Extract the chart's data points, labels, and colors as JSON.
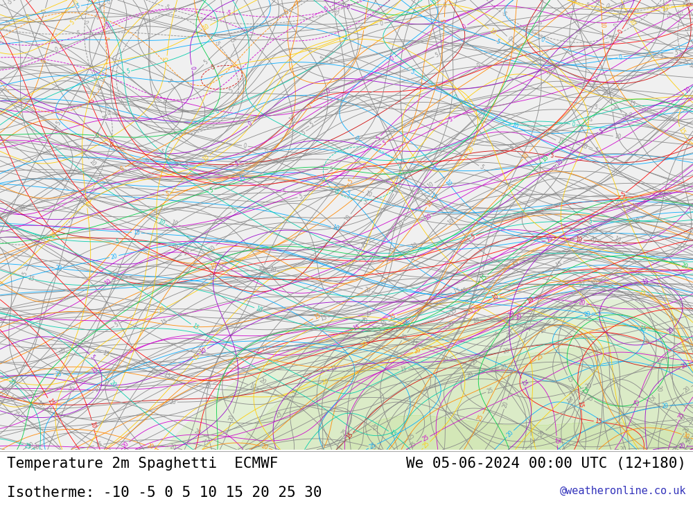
{
  "title_left": "Temperature 2m Spaghetti  ECMWF",
  "title_right": "We 05-06-2024 00:00 UTC (12+180)",
  "isotherme_label": "Isotherme: -10 -5 0 5 10 15 20 25 30",
  "watermark": "@weatheronline.co.uk",
  "bottom_bar_color": "#ffffff",
  "text_color": "#000000",
  "watermark_color": "#3333bb",
  "title_fontsize": 15,
  "iso_fontsize": 15,
  "watermark_fontsize": 11,
  "fig_width": 10.0,
  "fig_height": 7.33,
  "map_bg_color": "#f0f0f0",
  "warm_fill_color": "#d8f0c0",
  "member_colors": [
    "#888888",
    "#888888",
    "#888888",
    "#888888",
    "#888888",
    "#888888",
    "#888888",
    "#888888",
    "#888888",
    "#888888",
    "#888888",
    "#888888",
    "#888888",
    "#888888",
    "#888888",
    "#888888",
    "#888888",
    "#888888",
    "#888888",
    "#888888",
    "#888888",
    "#888888",
    "#888888",
    "#888888",
    "#888888",
    "#888888",
    "#888888",
    "#888888",
    "#888888",
    "#888888",
    "#cc00cc",
    "#cc00cc",
    "#cc00cc",
    "#ff8800",
    "#ff8800",
    "#ff8800",
    "#ffcc00",
    "#ffcc00",
    "#ffcc00",
    "#00aaff",
    "#00aaff",
    "#00aaff",
    "#00ccaa",
    "#00ccaa",
    "#ff0000",
    "#ff0000",
    "#cc0000",
    "#9900cc",
    "#9900cc",
    "#00cc44"
  ],
  "isotherm_values": [
    -10,
    -5,
    0,
    5,
    10,
    15,
    20,
    25,
    30
  ],
  "map_xlim": [
    -25,
    45
  ],
  "map_ylim": [
    25,
    72
  ]
}
